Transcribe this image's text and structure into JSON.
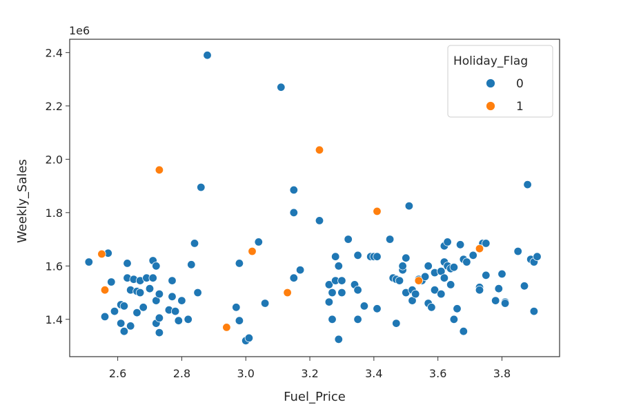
{
  "chart_data": {
    "type": "scatter",
    "xlabel": "Fuel_Price",
    "ylabel": "Weekly_Sales",
    "offset_text": "1e6",
    "xlim": [
      2.45,
      3.98
    ],
    "ylim": [
      1.26,
      2.45
    ],
    "xticks": [
      2.6,
      2.8,
      3.0,
      3.2,
      3.4,
      3.6,
      3.8
    ],
    "yticks": [
      1.4,
      1.6,
      1.8,
      2.0,
      2.2,
      2.4
    ],
    "xtick_labels": [
      "2.6",
      "2.8",
      "3.0",
      "3.2",
      "3.4",
      "3.6",
      "3.8"
    ],
    "ytick_labels": [
      "1.4",
      "1.6",
      "1.8",
      "2.0",
      "2.2",
      "2.4"
    ],
    "grid": false,
    "legend": {
      "title": "Holiday_Flag",
      "placement": "top-right",
      "entries": [
        "0",
        "1"
      ]
    },
    "series": [
      {
        "name": "0",
        "color": "#1f77b4",
        "points": [
          [
            2.51,
            1.615
          ],
          [
            2.56,
            1.41
          ],
          [
            2.57,
            1.648
          ],
          [
            2.58,
            1.54
          ],
          [
            2.59,
            1.43
          ],
          [
            2.61,
            1.455
          ],
          [
            2.61,
            1.385
          ],
          [
            2.62,
            1.45
          ],
          [
            2.62,
            1.355
          ],
          [
            2.63,
            1.555
          ],
          [
            2.63,
            1.61
          ],
          [
            2.64,
            1.51
          ],
          [
            2.64,
            1.375
          ],
          [
            2.65,
            1.55
          ],
          [
            2.66,
            1.425
          ],
          [
            2.66,
            1.505
          ],
          [
            2.67,
            1.545
          ],
          [
            2.67,
            1.5
          ],
          [
            2.68,
            1.445
          ],
          [
            2.69,
            1.555
          ],
          [
            2.7,
            1.515
          ],
          [
            2.71,
            1.62
          ],
          [
            2.71,
            1.555
          ],
          [
            2.72,
            1.6
          ],
          [
            2.72,
            1.385
          ],
          [
            2.72,
            1.47
          ],
          [
            2.73,
            1.35
          ],
          [
            2.73,
            1.495
          ],
          [
            2.73,
            1.405
          ],
          [
            2.76,
            1.435
          ],
          [
            2.77,
            1.545
          ],
          [
            2.77,
            1.485
          ],
          [
            2.78,
            1.43
          ],
          [
            2.79,
            1.395
          ],
          [
            2.8,
            1.47
          ],
          [
            2.82,
            1.4
          ],
          [
            2.83,
            1.605
          ],
          [
            2.84,
            1.685
          ],
          [
            2.85,
            1.5
          ],
          [
            2.86,
            1.895
          ],
          [
            2.88,
            2.39
          ],
          [
            2.97,
            1.445
          ],
          [
            2.98,
            1.395
          ],
          [
            2.98,
            1.61
          ],
          [
            3.0,
            1.32
          ],
          [
            3.01,
            1.33
          ],
          [
            3.04,
            1.69
          ],
          [
            3.06,
            1.46
          ],
          [
            3.11,
            2.27
          ],
          [
            3.15,
            1.885
          ],
          [
            3.15,
            1.8
          ],
          [
            3.15,
            1.555
          ],
          [
            3.17,
            1.585
          ],
          [
            3.23,
            1.77
          ],
          [
            3.26,
            1.53
          ],
          [
            3.26,
            1.465
          ],
          [
            3.27,
            1.4
          ],
          [
            3.27,
            1.5
          ],
          [
            3.28,
            1.545
          ],
          [
            3.28,
            1.635
          ],
          [
            3.29,
            1.325
          ],
          [
            3.29,
            1.6
          ],
          [
            3.3,
            1.545
          ],
          [
            3.3,
            1.5
          ],
          [
            3.32,
            1.7
          ],
          [
            3.34,
            1.53
          ],
          [
            3.35,
            1.51
          ],
          [
            3.35,
            1.4
          ],
          [
            3.35,
            1.64
          ],
          [
            3.37,
            1.45
          ],
          [
            3.39,
            1.635
          ],
          [
            3.4,
            1.635
          ],
          [
            3.41,
            1.635
          ],
          [
            3.41,
            1.44
          ],
          [
            3.45,
            1.7
          ],
          [
            3.46,
            1.555
          ],
          [
            3.47,
            1.385
          ],
          [
            3.47,
            1.55
          ],
          [
            3.48,
            1.545
          ],
          [
            3.49,
            1.585
          ],
          [
            3.49,
            1.6
          ],
          [
            3.5,
            1.63
          ],
          [
            3.5,
            1.5
          ],
          [
            3.51,
            1.825
          ],
          [
            3.52,
            1.47
          ],
          [
            3.52,
            1.51
          ],
          [
            3.53,
            1.495
          ],
          [
            3.54,
            1.55
          ],
          [
            3.55,
            1.545
          ],
          [
            3.56,
            1.56
          ],
          [
            3.57,
            1.6
          ],
          [
            3.57,
            1.46
          ],
          [
            3.58,
            1.445
          ],
          [
            3.59,
            1.51
          ],
          [
            3.59,
            1.575
          ],
          [
            3.61,
            1.58
          ],
          [
            3.61,
            1.495
          ],
          [
            3.62,
            1.675
          ],
          [
            3.62,
            1.615
          ],
          [
            3.62,
            1.555
          ],
          [
            3.63,
            1.6
          ],
          [
            3.63,
            1.69
          ],
          [
            3.64,
            1.59
          ],
          [
            3.64,
            1.53
          ],
          [
            3.65,
            1.4
          ],
          [
            3.65,
            1.595
          ],
          [
            3.66,
            1.44
          ],
          [
            3.67,
            1.68
          ],
          [
            3.68,
            1.355
          ],
          [
            3.68,
            1.625
          ],
          [
            3.69,
            1.615
          ],
          [
            3.71,
            1.64
          ],
          [
            3.73,
            1.52
          ],
          [
            3.73,
            1.51
          ],
          [
            3.74,
            1.685
          ],
          [
            3.75,
            1.565
          ],
          [
            3.75,
            1.685
          ],
          [
            3.78,
            1.47
          ],
          [
            3.79,
            1.515
          ],
          [
            3.8,
            1.57
          ],
          [
            3.81,
            1.465
          ],
          [
            3.81,
            1.46
          ],
          [
            3.85,
            1.655
          ],
          [
            3.87,
            1.525
          ],
          [
            3.88,
            1.905
          ],
          [
            3.89,
            1.625
          ],
          [
            3.9,
            1.615
          ],
          [
            3.9,
            1.43
          ],
          [
            3.91,
            1.635
          ]
        ]
      },
      {
        "name": "1",
        "color": "#ff7f0e",
        "points": [
          [
            2.55,
            1.645
          ],
          [
            2.56,
            1.51
          ],
          [
            2.73,
            1.96
          ],
          [
            2.94,
            1.37
          ],
          [
            3.02,
            1.655
          ],
          [
            3.13,
            1.5
          ],
          [
            3.23,
            2.035
          ],
          [
            3.41,
            1.805
          ],
          [
            3.54,
            1.545
          ],
          [
            3.73,
            1.665
          ]
        ]
      }
    ]
  }
}
